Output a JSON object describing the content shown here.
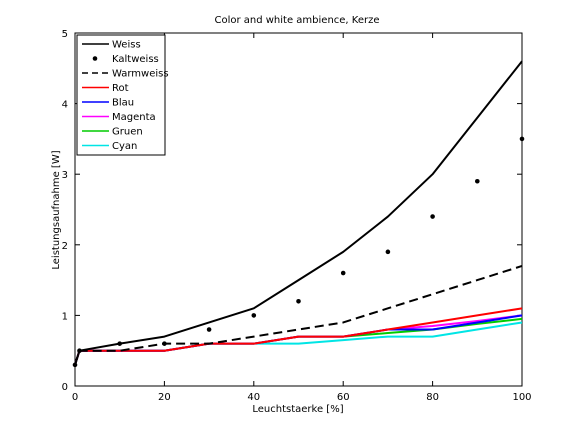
{
  "chart_data": {
    "type": "line",
    "title": "Color and white ambience, Kerze",
    "xlabel": "Leuchtstaerke [%]",
    "ylabel": "Leistungsaufnahme [W]",
    "xlim": [
      0,
      100
    ],
    "ylim": [
      0,
      5
    ],
    "xticks": [
      0,
      20,
      40,
      60,
      80,
      100
    ],
    "yticks": [
      0,
      1,
      2,
      3,
      4,
      5
    ],
    "grid": false,
    "legend_position": "top-left",
    "series": [
      {
        "name": "Weiss",
        "color": "#000000",
        "style": "solid",
        "width": 2,
        "points": [
          [
            0,
            0.3
          ],
          [
            1,
            0.5
          ],
          [
            10,
            0.6
          ],
          [
            20,
            0.7
          ],
          [
            30,
            0.9
          ],
          [
            40,
            1.1
          ],
          [
            50,
            1.5
          ],
          [
            60,
            1.9
          ],
          [
            70,
            2.4
          ],
          [
            80,
            3.0
          ],
          [
            90,
            3.8
          ],
          [
            100,
            4.6
          ]
        ]
      },
      {
        "name": "Kaltweiss",
        "color": "#000000",
        "style": "markers",
        "points": [
          [
            0,
            0.3
          ],
          [
            1,
            0.5
          ],
          [
            10,
            0.6
          ],
          [
            20,
            0.6
          ],
          [
            30,
            0.8
          ],
          [
            40,
            1.0
          ],
          [
            50,
            1.2
          ],
          [
            60,
            1.6
          ],
          [
            70,
            1.9
          ],
          [
            80,
            2.4
          ],
          [
            90,
            2.9
          ],
          [
            100,
            3.5
          ]
        ]
      },
      {
        "name": "Warmweiss",
        "color": "#000000",
        "style": "dashed",
        "width": 2,
        "points": [
          [
            0,
            0.3
          ],
          [
            1,
            0.5
          ],
          [
            10,
            0.5
          ],
          [
            20,
            0.6
          ],
          [
            30,
            0.6
          ],
          [
            40,
            0.7
          ],
          [
            50,
            0.8
          ],
          [
            60,
            0.9
          ],
          [
            70,
            1.1
          ],
          [
            80,
            1.3
          ],
          [
            90,
            1.5
          ],
          [
            100,
            1.7
          ]
        ]
      },
      {
        "name": "Rot",
        "color": "#ff0000",
        "style": "solid",
        "width": 2,
        "points": [
          [
            0,
            0.3
          ],
          [
            1,
            0.5
          ],
          [
            10,
            0.5
          ],
          [
            20,
            0.5
          ],
          [
            30,
            0.6
          ],
          [
            40,
            0.6
          ],
          [
            50,
            0.7
          ],
          [
            60,
            0.7
          ],
          [
            70,
            0.8
          ],
          [
            80,
            0.9
          ],
          [
            90,
            1.0
          ],
          [
            100,
            1.1
          ]
        ]
      },
      {
        "name": "Blau",
        "color": "#0000ff",
        "style": "solid",
        "width": 2,
        "points": [
          [
            0,
            0.3
          ],
          [
            1,
            0.5
          ],
          [
            10,
            0.5
          ],
          [
            20,
            0.5
          ],
          [
            30,
            0.6
          ],
          [
            40,
            0.6
          ],
          [
            50,
            0.7
          ],
          [
            60,
            0.7
          ],
          [
            70,
            0.8
          ],
          [
            80,
            0.8
          ],
          [
            90,
            0.9
          ],
          [
            100,
            1.0
          ]
        ]
      },
      {
        "name": "Magenta",
        "color": "#ff00ff",
        "style": "solid",
        "width": 2,
        "points": [
          [
            0,
            0.3
          ],
          [
            1,
            0.5
          ],
          [
            10,
            0.5
          ],
          [
            20,
            0.5
          ],
          [
            30,
            0.6
          ],
          [
            40,
            0.6
          ],
          [
            50,
            0.7
          ],
          [
            60,
            0.7
          ],
          [
            70,
            0.8
          ],
          [
            80,
            0.85
          ],
          [
            90,
            0.92
          ],
          [
            100,
            1.0
          ]
        ]
      },
      {
        "name": "Gruen",
        "color": "#00cc00",
        "style": "solid",
        "width": 2,
        "points": [
          [
            0,
            0.3
          ],
          [
            1,
            0.5
          ],
          [
            10,
            0.5
          ],
          [
            20,
            0.5
          ],
          [
            30,
            0.6
          ],
          [
            40,
            0.6
          ],
          [
            50,
            0.7
          ],
          [
            60,
            0.7
          ],
          [
            70,
            0.75
          ],
          [
            80,
            0.8
          ],
          [
            90,
            0.88
          ],
          [
            100,
            0.95
          ]
        ]
      },
      {
        "name": "Cyan",
        "color": "#00e5e5",
        "style": "solid",
        "width": 2,
        "points": [
          [
            0,
            0.3
          ],
          [
            1,
            0.5
          ],
          [
            10,
            0.5
          ],
          [
            20,
            0.5
          ],
          [
            30,
            0.6
          ],
          [
            40,
            0.6
          ],
          [
            50,
            0.6
          ],
          [
            60,
            0.65
          ],
          [
            70,
            0.7
          ],
          [
            80,
            0.7
          ],
          [
            90,
            0.8
          ],
          [
            100,
            0.9
          ]
        ]
      }
    ]
  }
}
